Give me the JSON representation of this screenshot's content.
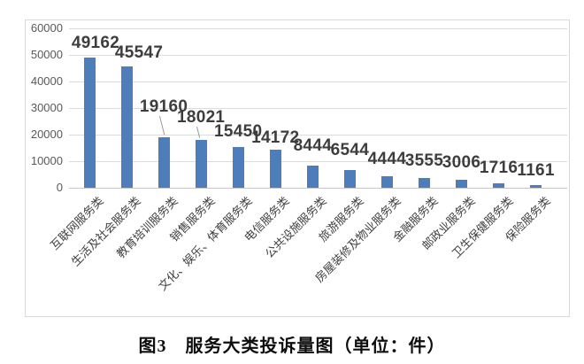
{
  "figure_caption": "图3　服务大类投诉量图（单位：件）",
  "chart_data": {
    "type": "bar",
    "title": "",
    "unit_label": "件",
    "categories": [
      "互联网服务类",
      "生活及社会服务类",
      "教育培训服务类",
      "销售服务类",
      "文化、娱乐、体育服务类",
      "电信服务类",
      "公共设施服务类",
      "旅游服务类",
      "房屋装修及物业服务类",
      "金融服务类",
      "邮政业服务类",
      "卫生保健服务类",
      "保险服务类"
    ],
    "values": [
      49162,
      45547,
      19160,
      18021,
      15450,
      14172,
      8444,
      6544,
      4444,
      3555,
      3006,
      1716,
      1161
    ],
    "data_labels": [
      "49162",
      "45547",
      "19160",
      "18021",
      "15450",
      "14172",
      "8444",
      "6544",
      "4444",
      "3555",
      "3006",
      "1716",
      "1161"
    ],
    "yticks": [
      "0",
      "10000",
      "20000",
      "30000",
      "40000",
      "50000",
      "60000"
    ],
    "ylim": [
      0,
      60000
    ],
    "ytick_step": 10000,
    "grid": true,
    "legend": false,
    "bar_color": "#4d7dbb",
    "grid_color": "#dcdcdc",
    "tick_label_color": "#595959",
    "value_label_color": "#3d3d3d",
    "category_label_angle_deg": -45
  }
}
